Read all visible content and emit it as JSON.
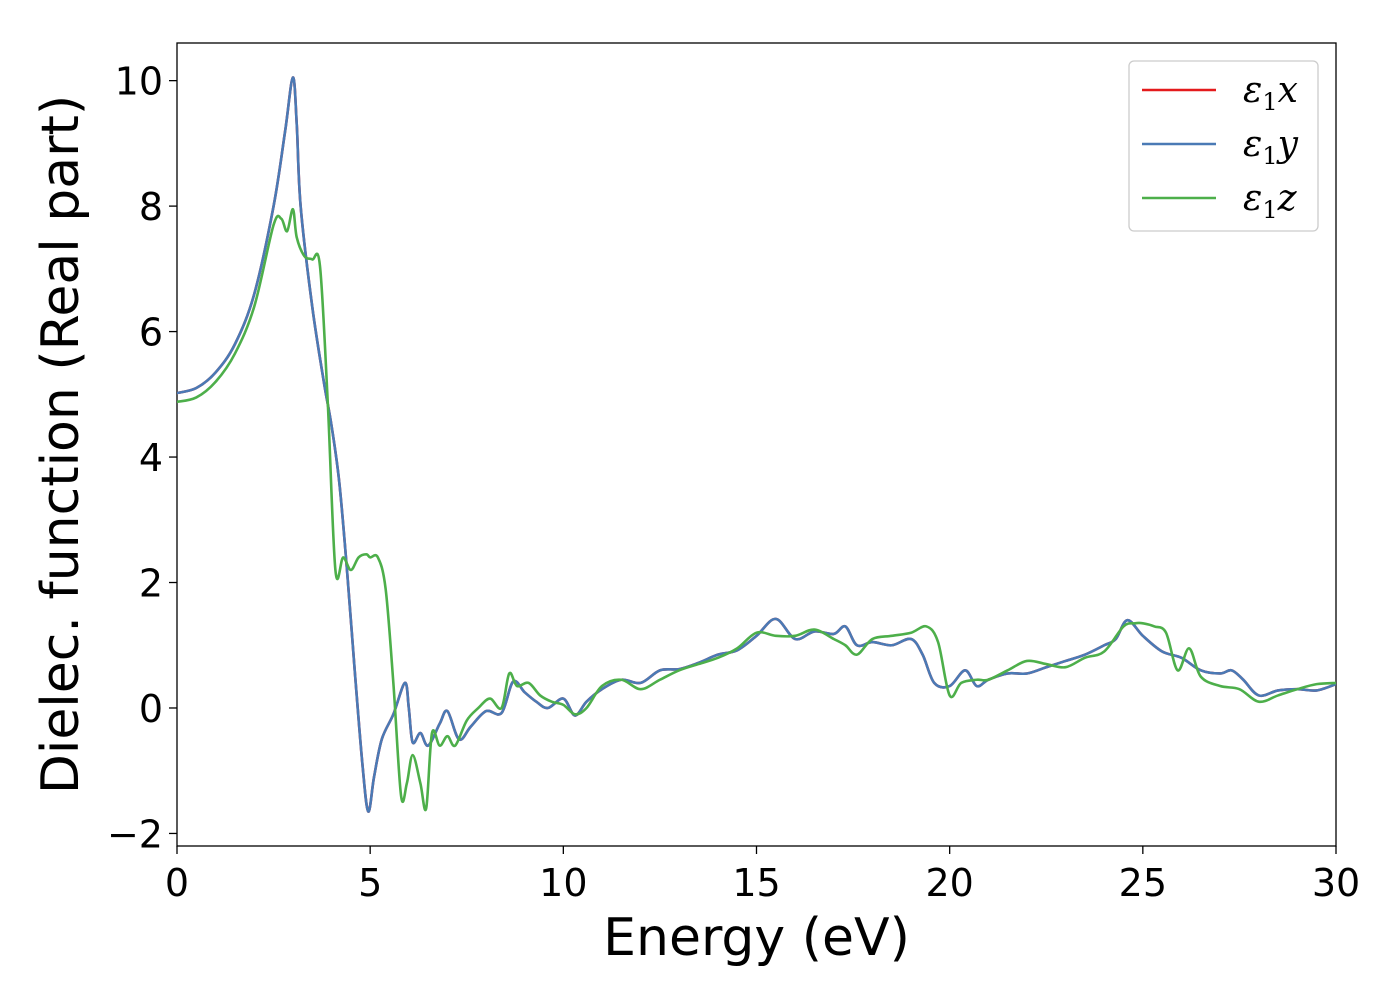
{
  "chart_data": {
    "type": "line",
    "xlabel": "Energy (eV)",
    "ylabel": "Dielec. function (Real part)",
    "xlim": [
      0,
      30
    ],
    "ylim": [
      -2.2,
      10.6
    ],
    "xticks": [
      0,
      5,
      10,
      15,
      20,
      25,
      30
    ],
    "xtick_labels": [
      "0",
      "5",
      "10",
      "15",
      "20",
      "25",
      "30"
    ],
    "yticks": [
      -2,
      0,
      2,
      4,
      6,
      8,
      10
    ],
    "ytick_labels": [
      "−2",
      "0",
      "2",
      "4",
      "6",
      "8",
      "10"
    ],
    "grid": false,
    "legend": {
      "position": "top-right"
    },
    "series": [
      {
        "name": "ε₁x",
        "legend_main": "ε",
        "legend_sub": "1",
        "legend_var": "x",
        "color": "#e41a1c",
        "x": [
          0,
          0.5,
          1,
          1.5,
          2,
          2.5,
          2.8,
          3.0,
          3.1,
          3.2,
          3.5,
          3.8,
          4.0,
          4.2,
          4.4,
          4.6,
          4.8,
          4.95,
          5.1,
          5.3,
          5.6,
          5.9,
          6.0,
          6.1,
          6.3,
          6.5,
          6.8,
          7.0,
          7.3,
          7.6,
          8.0,
          8.4,
          8.7,
          9.0,
          9.3,
          9.6,
          10.0,
          10.3,
          10.6,
          11.0,
          11.5,
          12.0,
          12.5,
          13.0,
          13.5,
          14.0,
          14.5,
          15.0,
          15.5,
          16.0,
          16.5,
          17.0,
          17.3,
          17.6,
          18.0,
          18.5,
          19.0,
          19.3,
          19.6,
          20.0,
          20.4,
          20.7,
          21.0,
          21.5,
          22.0,
          22.5,
          23.0,
          23.5,
          24.0,
          24.3,
          24.6,
          25.0,
          25.5,
          26.0,
          26.5,
          27.0,
          27.3,
          27.6,
          28.0,
          28.5,
          29.0,
          29.5,
          30.0
        ],
        "y": [
          5.02,
          5.1,
          5.35,
          5.8,
          6.6,
          8.0,
          9.2,
          10.05,
          9.3,
          8.0,
          6.4,
          5.2,
          4.5,
          3.6,
          2.2,
          0.6,
          -0.9,
          -1.65,
          -1.1,
          -0.5,
          -0.1,
          0.4,
          0.0,
          -0.55,
          -0.4,
          -0.6,
          -0.25,
          -0.05,
          -0.5,
          -0.3,
          -0.05,
          -0.08,
          0.42,
          0.25,
          0.1,
          0.0,
          0.15,
          -0.12,
          0.1,
          0.3,
          0.45,
          0.4,
          0.6,
          0.62,
          0.72,
          0.85,
          0.92,
          1.15,
          1.42,
          1.1,
          1.22,
          1.18,
          1.3,
          1.0,
          1.05,
          1.0,
          1.1,
          0.85,
          0.4,
          0.35,
          0.6,
          0.35,
          0.45,
          0.55,
          0.55,
          0.65,
          0.75,
          0.85,
          1.0,
          1.1,
          1.4,
          1.15,
          0.9,
          0.8,
          0.6,
          0.55,
          0.6,
          0.45,
          0.2,
          0.28,
          0.3,
          0.28,
          0.38
        ]
      },
      {
        "name": "ε₁y",
        "legend_main": "ε",
        "legend_sub": "1",
        "legend_var": "y",
        "color": "#4a7ab5",
        "x": [
          0,
          0.5,
          1,
          1.5,
          2,
          2.5,
          2.8,
          3.0,
          3.1,
          3.2,
          3.5,
          3.8,
          4.0,
          4.2,
          4.4,
          4.6,
          4.8,
          4.95,
          5.1,
          5.3,
          5.6,
          5.9,
          6.0,
          6.1,
          6.3,
          6.5,
          6.8,
          7.0,
          7.3,
          7.6,
          8.0,
          8.4,
          8.7,
          9.0,
          9.3,
          9.6,
          10.0,
          10.3,
          10.6,
          11.0,
          11.5,
          12.0,
          12.5,
          13.0,
          13.5,
          14.0,
          14.5,
          15.0,
          15.5,
          16.0,
          16.5,
          17.0,
          17.3,
          17.6,
          18.0,
          18.5,
          19.0,
          19.3,
          19.6,
          20.0,
          20.4,
          20.7,
          21.0,
          21.5,
          22.0,
          22.5,
          23.0,
          23.5,
          24.0,
          24.3,
          24.6,
          25.0,
          25.5,
          26.0,
          26.5,
          27.0,
          27.3,
          27.6,
          28.0,
          28.5,
          29.0,
          29.5,
          30.0
        ],
        "y": [
          5.02,
          5.1,
          5.35,
          5.8,
          6.6,
          8.0,
          9.2,
          10.05,
          9.3,
          8.0,
          6.4,
          5.2,
          4.5,
          3.6,
          2.2,
          0.6,
          -0.9,
          -1.65,
          -1.1,
          -0.5,
          -0.1,
          0.4,
          0.0,
          -0.55,
          -0.4,
          -0.6,
          -0.25,
          -0.05,
          -0.5,
          -0.3,
          -0.05,
          -0.08,
          0.42,
          0.25,
          0.1,
          0.0,
          0.15,
          -0.12,
          0.1,
          0.3,
          0.45,
          0.4,
          0.6,
          0.62,
          0.72,
          0.85,
          0.92,
          1.15,
          1.42,
          1.1,
          1.22,
          1.18,
          1.3,
          1.0,
          1.05,
          1.0,
          1.1,
          0.85,
          0.4,
          0.35,
          0.6,
          0.35,
          0.45,
          0.55,
          0.55,
          0.65,
          0.75,
          0.85,
          1.0,
          1.1,
          1.4,
          1.15,
          0.9,
          0.8,
          0.6,
          0.55,
          0.6,
          0.45,
          0.2,
          0.28,
          0.3,
          0.28,
          0.38
        ]
      },
      {
        "name": "ε₁z",
        "legend_main": "ε",
        "legend_sub": "1",
        "legend_var": "z",
        "color": "#4daf4a",
        "x": [
          0,
          0.5,
          1,
          1.5,
          2,
          2.5,
          2.7,
          2.85,
          3.0,
          3.1,
          3.3,
          3.5,
          3.7,
          3.9,
          4.1,
          4.3,
          4.5,
          4.7,
          4.9,
          5.0,
          5.2,
          5.4,
          5.6,
          5.8,
          5.95,
          6.1,
          6.3,
          6.45,
          6.6,
          6.8,
          7.0,
          7.2,
          7.5,
          7.8,
          8.1,
          8.4,
          8.6,
          8.8,
          9.1,
          9.4,
          9.7,
          10.0,
          10.3,
          10.6,
          11.0,
          11.5,
          12.0,
          12.5,
          13.0,
          13.5,
          14.0,
          14.5,
          15.0,
          15.5,
          16.0,
          16.5,
          17.0,
          17.3,
          17.6,
          18.0,
          18.5,
          19.0,
          19.4,
          19.7,
          20.0,
          20.3,
          20.7,
          21.0,
          21.5,
          22.0,
          22.5,
          23.0,
          23.5,
          24.0,
          24.5,
          24.8,
          25.0,
          25.3,
          25.6,
          25.9,
          26.2,
          26.5,
          27.0,
          27.5,
          28.0,
          28.5,
          29.0,
          29.5,
          30.0
        ],
        "y": [
          4.88,
          4.95,
          5.2,
          5.65,
          6.4,
          7.7,
          7.8,
          7.6,
          7.95,
          7.5,
          7.2,
          7.15,
          7.05,
          4.9,
          2.2,
          2.4,
          2.2,
          2.4,
          2.45,
          2.4,
          2.4,
          1.9,
          0.4,
          -1.4,
          -1.2,
          -0.75,
          -1.2,
          -1.6,
          -0.4,
          -0.6,
          -0.45,
          -0.6,
          -0.2,
          0.0,
          0.15,
          0.0,
          0.55,
          0.35,
          0.4,
          0.2,
          0.1,
          0.05,
          -0.1,
          0.0,
          0.35,
          0.45,
          0.3,
          0.45,
          0.6,
          0.7,
          0.8,
          0.95,
          1.2,
          1.15,
          1.15,
          1.25,
          1.1,
          1.0,
          0.85,
          1.1,
          1.15,
          1.2,
          1.3,
          1.05,
          0.2,
          0.4,
          0.45,
          0.45,
          0.6,
          0.75,
          0.7,
          0.65,
          0.8,
          0.9,
          1.3,
          1.35,
          1.35,
          1.3,
          1.2,
          0.6,
          0.95,
          0.5,
          0.35,
          0.3,
          0.1,
          0.2,
          0.3,
          0.38,
          0.4
        ]
      }
    ]
  }
}
